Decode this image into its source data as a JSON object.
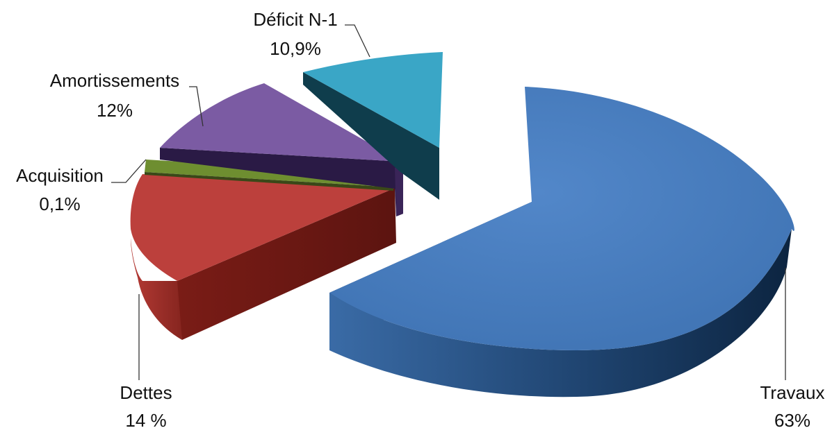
{
  "chart_data": {
    "type": "pie",
    "style": "3d-exploded",
    "slices": [
      {
        "key": "travaux",
        "category": "Travaux",
        "value_label": "63%",
        "value": 63,
        "color": "#4a7cbf",
        "side_color": "#1c3d66",
        "wall_color": "#234a78"
      },
      {
        "key": "dettes",
        "category": "Dettes",
        "value_label": "14 %",
        "value": 14,
        "color": "#bd3f3c",
        "side_color": "#7a1f1b",
        "wall_color": "#681712"
      },
      {
        "key": "acquisition",
        "category": "Acquisition",
        "value_label": "0,1%",
        "value": 0.1,
        "color": "#7a9a3a",
        "side_color": "#3d4f1a",
        "wall_color": "#3a4818"
      },
      {
        "key": "amortissements",
        "category": "Amortissements",
        "value_label": "12%",
        "value": 12,
        "color": "#7c5da4",
        "side_color": "#3c2658",
        "wall_color": "#2a1a45"
      },
      {
        "key": "deficit",
        "category": "Déficit N-1",
        "value_label": "10,9%",
        "value": 10.9,
        "color": "#3aa6c6",
        "side_color": "#12465a",
        "wall_color": "#0f3d4c"
      }
    ]
  }
}
